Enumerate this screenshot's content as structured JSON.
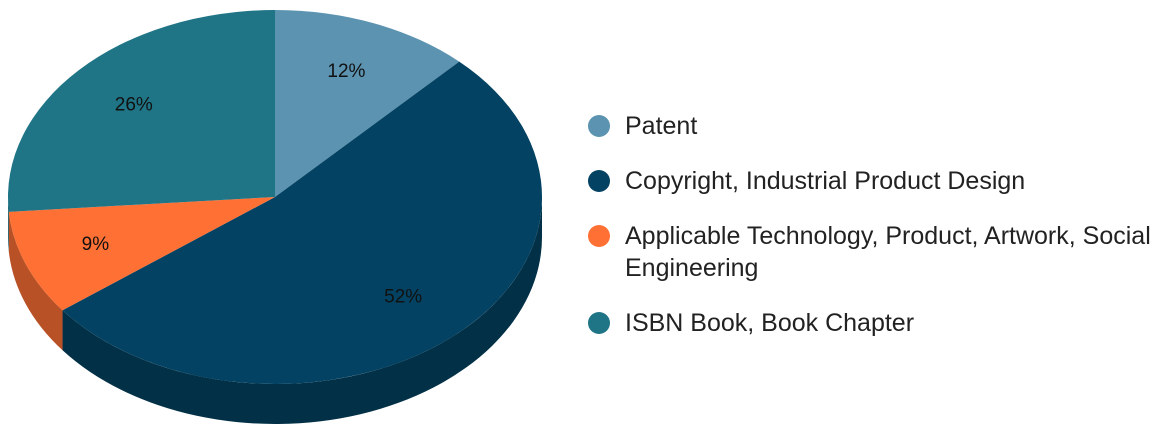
{
  "chart_data": {
    "type": "pie",
    "categories": [
      "Patent",
      "Copyright, Industrial Product Design",
      "Applicable Technology, Product, Artwork, Social Engineering",
      "ISBN Book, Book Chapter"
    ],
    "values": [
      12,
      52,
      9,
      26
    ],
    "value_labels": [
      "12%",
      "52%",
      "9%",
      "26%"
    ],
    "colors": [
      "#5b93b0",
      "#034262",
      "#ff7034",
      "#1f7586"
    ],
    "legend": "right"
  }
}
